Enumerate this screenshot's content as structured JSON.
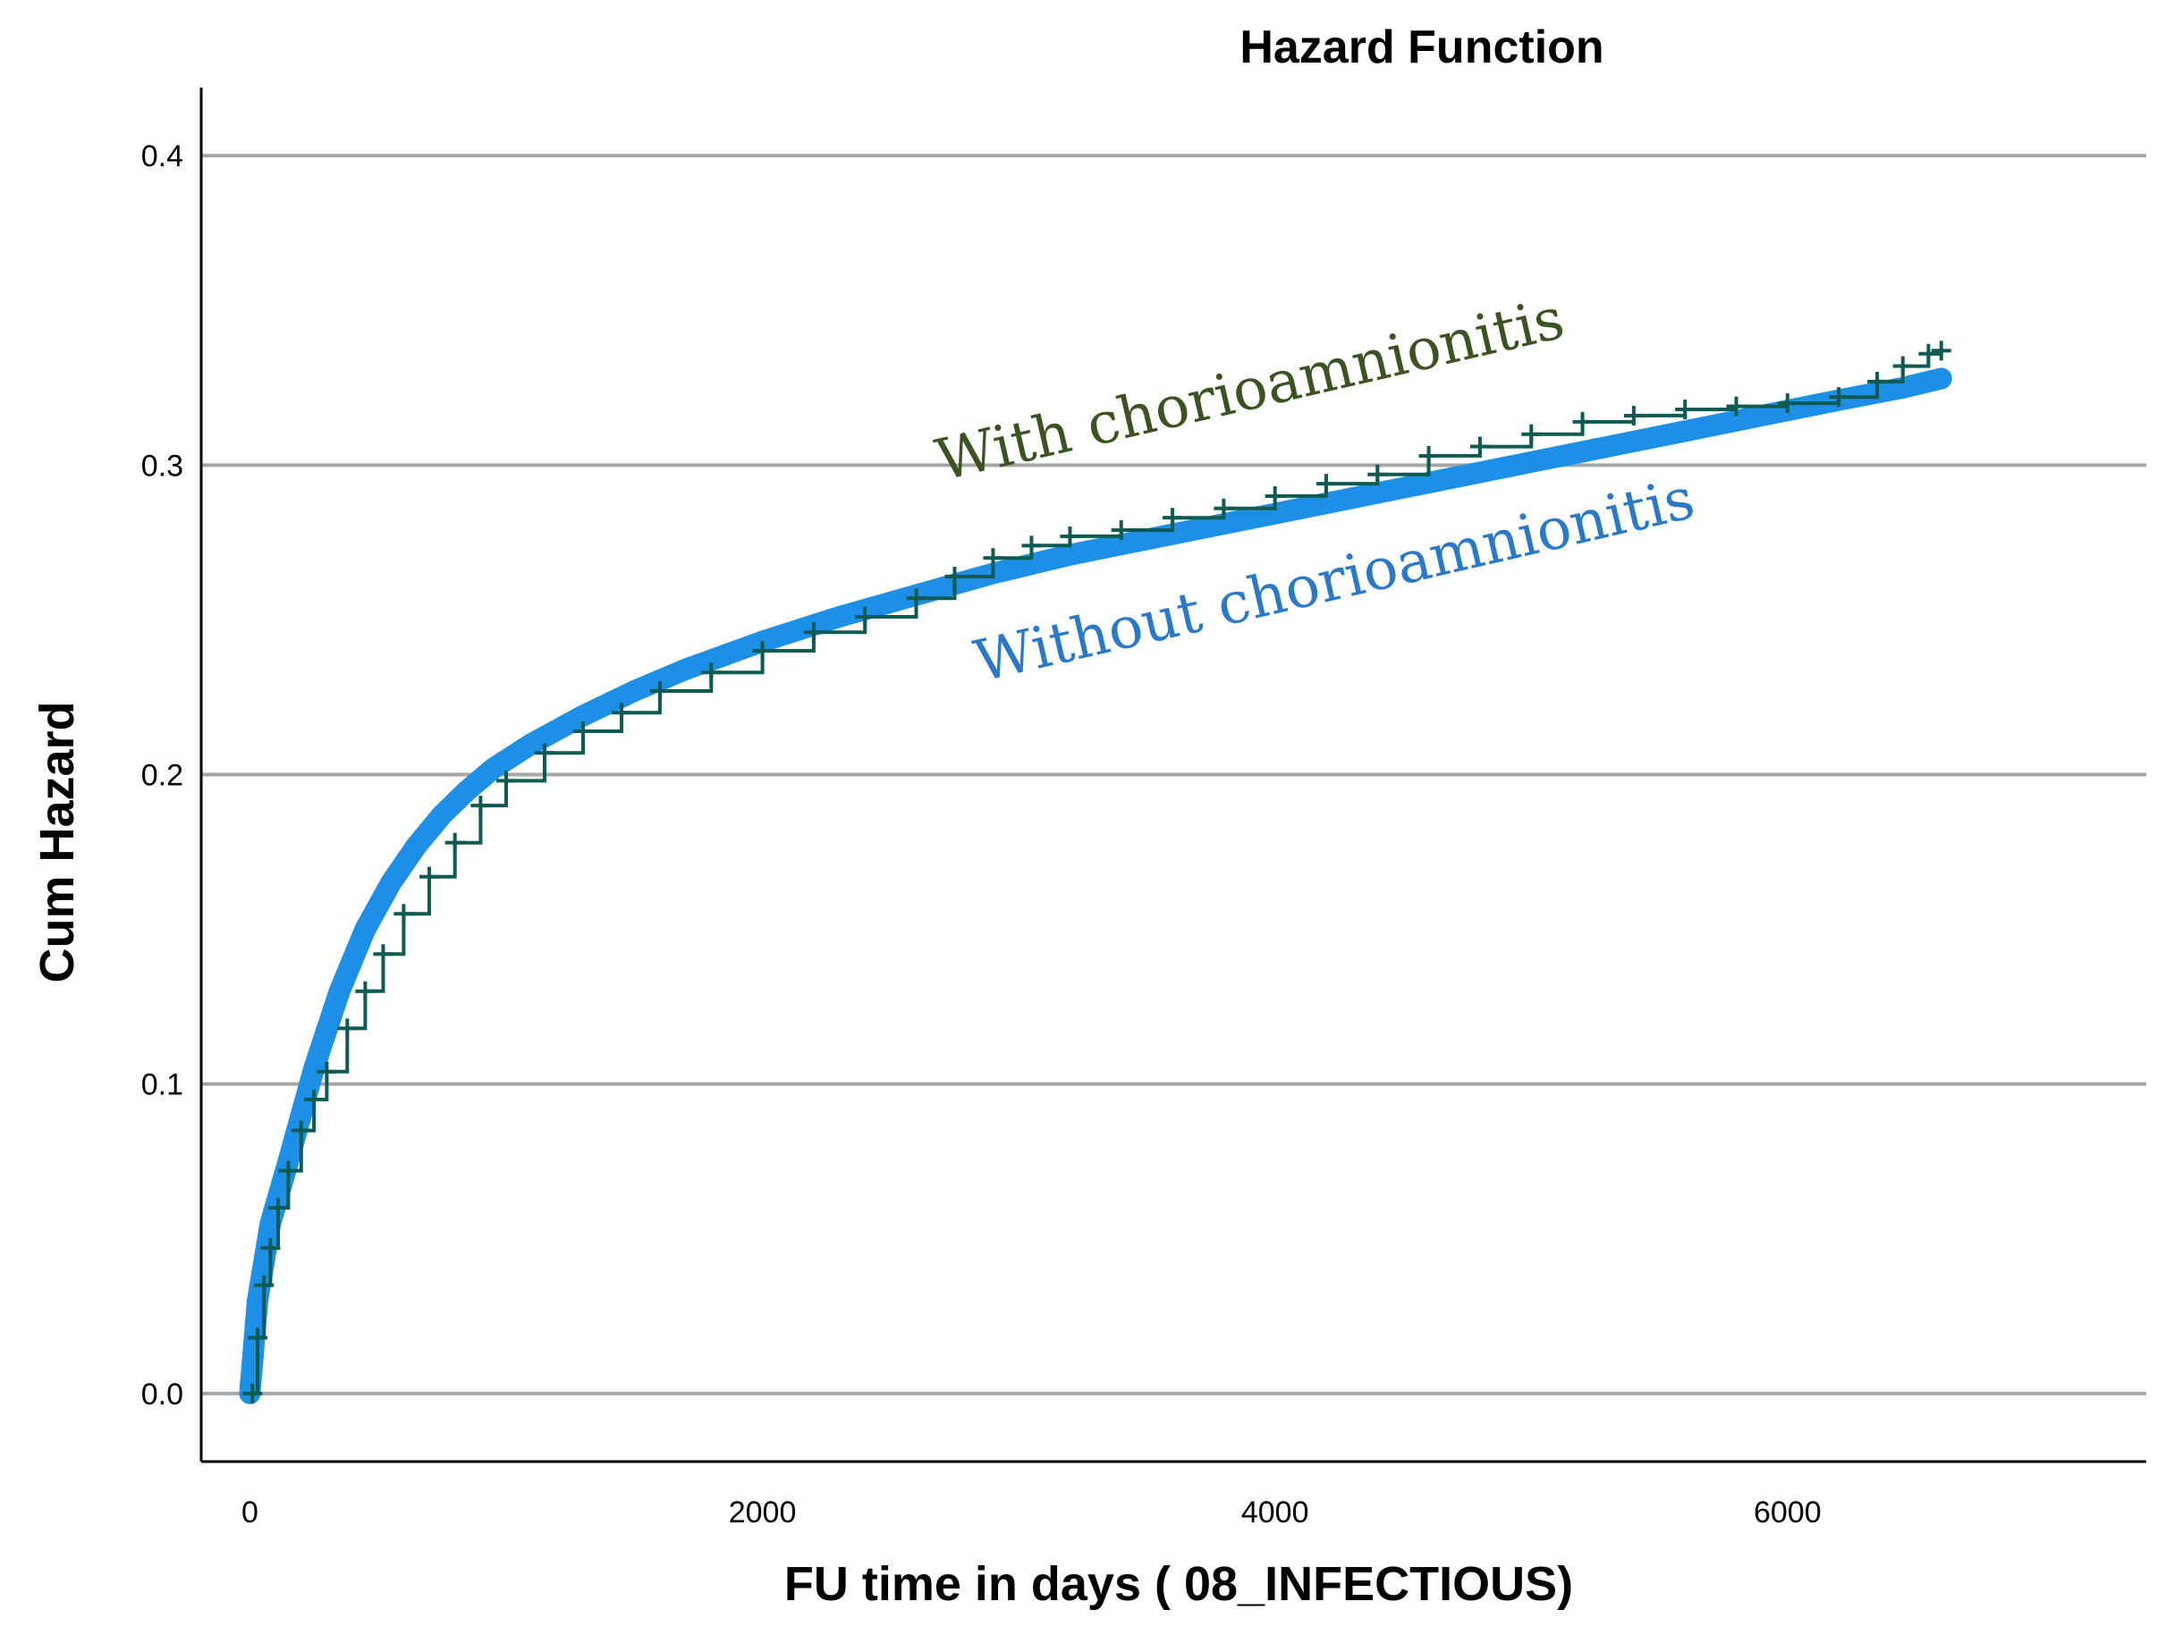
{
  "colors": {
    "without": "#1E8FE6",
    "with": "#0F5B52",
    "annotation_with": "#3B5323",
    "annotation_without": "#2A78C8",
    "grid": "#A6A6A6",
    "axis": "#000000"
  },
  "chart_data": {
    "type": "line",
    "title": "Hazard Function",
    "xlabel": "FU time in days ( 08_INFECTIOUS)",
    "ylabel": "Cum Hazard",
    "xlim": [
      -190,
      7400
    ],
    "ylim": [
      -0.022,
      0.422
    ],
    "xticks": [
      0,
      2000,
      4000,
      6000
    ],
    "xtick_labels": [
      "0",
      "2000",
      "4000",
      "6000"
    ],
    "yticks": [
      0.0,
      0.1,
      0.2,
      0.3,
      0.4
    ],
    "ytick_labels": [
      "0.0",
      "0.1",
      "0.2",
      "0.3",
      "0.4"
    ],
    "grid": "horizontal",
    "legend": "none",
    "annotations": [
      {
        "text": "With chorioamnionitis",
        "x": 2700,
        "y": 0.295,
        "angle": -13,
        "series": "with"
      },
      {
        "text": "Without chorioamnionitis",
        "x": 2850,
        "y": 0.23,
        "angle": -13,
        "series": "without"
      }
    ],
    "series": [
      {
        "key": "without",
        "style": "thick-line",
        "x": [
          0,
          30,
          80,
          150,
          250,
          350,
          450,
          550,
          650,
          750,
          850,
          950,
          1100,
          1300,
          1500,
          1700,
          2000,
          2300,
          2600,
          2900,
          3200,
          3500,
          3800,
          4100,
          4400,
          4700,
          5000,
          5300,
          5600,
          5900,
          6200,
          6450,
          6600
        ],
        "y": [
          0.0,
          0.03,
          0.055,
          0.075,
          0.105,
          0.13,
          0.15,
          0.165,
          0.177,
          0.187,
          0.195,
          0.202,
          0.21,
          0.219,
          0.227,
          0.234,
          0.243,
          0.251,
          0.258,
          0.265,
          0.271,
          0.276,
          0.281,
          0.286,
          0.291,
          0.296,
          0.301,
          0.306,
          0.311,
          0.316,
          0.321,
          0.325,
          0.328
        ]
      },
      {
        "key": "with",
        "style": "step-with-censor-marks",
        "x": [
          10,
          30,
          55,
          80,
          110,
          150,
          200,
          250,
          300,
          380,
          450,
          520,
          600,
          700,
          800,
          900,
          1000,
          1150,
          1300,
          1450,
          1600,
          1800,
          2000,
          2200,
          2400,
          2600,
          2750,
          2900,
          3050,
          3200,
          3400,
          3600,
          3800,
          4000,
          4200,
          4400,
          4600,
          4800,
          5000,
          5200,
          5400,
          5600,
          5800,
          6000,
          6200,
          6350,
          6450,
          6550,
          6600
        ],
        "y": [
          0.0,
          0.018,
          0.035,
          0.047,
          0.06,
          0.072,
          0.085,
          0.095,
          0.104,
          0.118,
          0.13,
          0.142,
          0.155,
          0.167,
          0.178,
          0.19,
          0.198,
          0.207,
          0.214,
          0.22,
          0.227,
          0.233,
          0.24,
          0.246,
          0.251,
          0.257,
          0.264,
          0.27,
          0.274,
          0.277,
          0.279,
          0.283,
          0.286,
          0.29,
          0.294,
          0.297,
          0.303,
          0.306,
          0.31,
          0.314,
          0.316,
          0.318,
          0.319,
          0.32,
          0.322,
          0.327,
          0.332,
          0.336,
          0.337
        ]
      }
    ]
  }
}
